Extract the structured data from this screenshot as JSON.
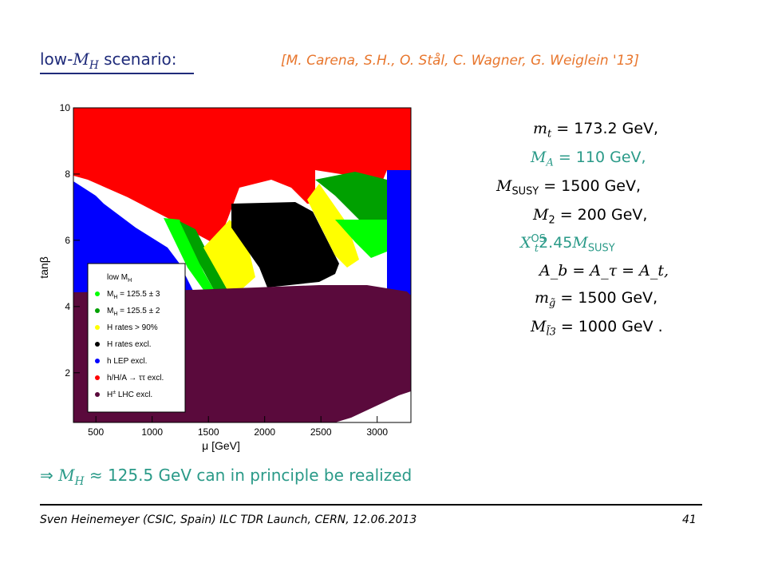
{
  "slide": {
    "title_prefix": "low-",
    "title_var": "M",
    "title_sub": "H",
    "title_suffix": " scenario:",
    "citation": "[M. Carena, S.H., O. Stål, C. Wagner, G. Weiglein '13]",
    "conclusion_arrow": "⇒ ",
    "conclusion_var": "M",
    "conclusion_sub": "H",
    "conclusion_text": " ≈ 125.5 GeV can in principle be realized",
    "footer": "Sven Heinemeyer (CSIC, Spain) ILC TDR Launch, CERN, 12.06.2013",
    "page_number": "41"
  },
  "params": [
    {
      "lhs_var": "m",
      "lhs_sub": "t",
      "rhs": " = 173.2 GeV,",
      "color": "#000000"
    },
    {
      "lhs_var": "M",
      "lhs_sub": "A",
      "rhs": " = 110 GeV,",
      "color": "#2a9a88"
    },
    {
      "lhs_var": "M",
      "lhs_sub": "SUSY",
      "rhs": " = 1500 GeV,",
      "color": "#000000"
    },
    {
      "lhs_var": "M",
      "lhs_sub": "2",
      "rhs": " = 200 GeV,",
      "color": "#000000"
    },
    {
      "lhs_var": "X",
      "lhs_sub": "t",
      "lhs_sup": "OS",
      "rhs": "2.45",
      "rhs_var": "M",
      "rhs_sub": "SUSY",
      "color": "#2a9a88"
    },
    {
      "text": "A_b = A_τ = A_t,",
      "color": "#000000"
    },
    {
      "lhs_var": "m",
      "lhs_sub": "g̃",
      "rhs": " = 1500 GeV,",
      "color": "#000000"
    },
    {
      "lhs_var": "M",
      "lhs_sub": "l̃3",
      "rhs": " = 1000 GeV .",
      "color": "#000000"
    }
  ],
  "colors": {
    "title": "#1f2b7a",
    "citation": "#e8762d",
    "teal": "#2a9a88",
    "red": "#ff0000",
    "blue": "#0000ff",
    "black": "#000000",
    "yellow": "#ffff00",
    "light_green": "#00ff00",
    "dark_green": "#00a000",
    "purple": "#5a0a3c"
  },
  "chart_data": {
    "type": "heatmap",
    "xlabel": "μ [GeV]",
    "ylabel": "tanβ",
    "xlim": [
      300,
      3300
    ],
    "ylim": [
      0.5,
      10
    ],
    "x_ticks": [
      500,
      1000,
      1500,
      2000,
      2500,
      3000
    ],
    "y_ticks": [
      2,
      4,
      6,
      8,
      10
    ],
    "legend_title": "low M",
    "legend_title_sub": "H",
    "legend": [
      {
        "label": "M",
        "label_sub": "H",
        "label_suffix": " = 125.5 ± 3",
        "color": "#00ff00"
      },
      {
        "label": "M",
        "label_sub": "H",
        "label_suffix": " = 125.5 ± 2",
        "color": "#00a000"
      },
      {
        "label": "H rates > 90%",
        "color": "#ffff00"
      },
      {
        "label": "H rates excl.",
        "color": "#000000"
      },
      {
        "label": "h LEP excl.",
        "color": "#0000ff"
      },
      {
        "label": "h/H/A  → ττ excl.",
        "color": "#ff0000"
      },
      {
        "label": "H",
        "label_sup": "±",
        "label_suffix": " LHC excl.",
        "color": "#5a0a3c"
      }
    ],
    "legend_placement": "bottom-left"
  }
}
